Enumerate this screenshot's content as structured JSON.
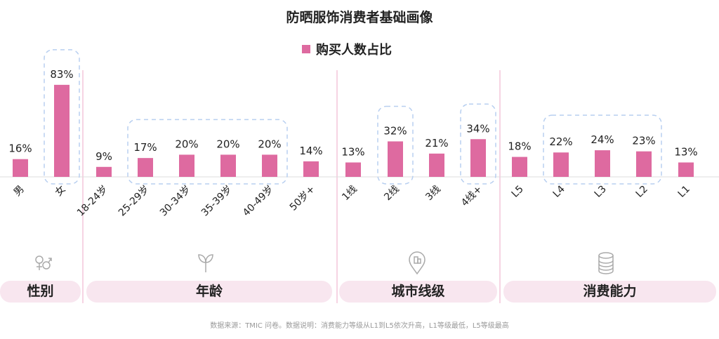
{
  "chart_data": {
    "type": "bar",
    "title": "防晒服饰消费者基础画像",
    "legend": [
      "购买人数占比"
    ],
    "legend_placement": "top-center",
    "series": [
      {
        "name": "购买人数占比",
        "color": "#de6aa0",
        "values": [
          16,
          83,
          9,
          17,
          20,
          20,
          20,
          14,
          13,
          32,
          21,
          34,
          18,
          22,
          24,
          23,
          13
        ]
      }
    ],
    "categories": [
      "男",
      "女",
      "18-24岁",
      "25-29岁",
      "30-34岁",
      "35-39岁",
      "40-49岁",
      "50岁+",
      "1线",
      "2线",
      "3线",
      "4线+",
      "L5",
      "L4",
      "L3",
      "L2",
      "L1"
    ],
    "data_labels": [
      "16%",
      "83%",
      "9%",
      "17%",
      "20%",
      "20%",
      "20%",
      "14%",
      "13%",
      "32%",
      "21%",
      "34%",
      "18%",
      "22%",
      "24%",
      "23%",
      "13%"
    ],
    "groups": [
      {
        "label": "性别",
        "icon": "gender-icon",
        "range": [
          0,
          1
        ]
      },
      {
        "label": "年龄",
        "icon": "sprout-icon",
        "range": [
          2,
          7
        ]
      },
      {
        "label": "城市线级",
        "icon": "location-pin-icon",
        "range": [
          8,
          11
        ]
      },
      {
        "label": "消费能力",
        "icon": "coins-icon",
        "range": [
          12,
          16
        ]
      }
    ],
    "highlights": [
      [
        1,
        1
      ],
      [
        3,
        6
      ],
      [
        9,
        9
      ],
      [
        11,
        11
      ],
      [
        13,
        15
      ]
    ],
    "ylim": [
      0,
      100
    ],
    "grid": false
  },
  "footnote": "数据来源：TMIC 问卷。数据说明：消费能力等级从L1到L5依次升高，L1等级最低，L5等级最高"
}
